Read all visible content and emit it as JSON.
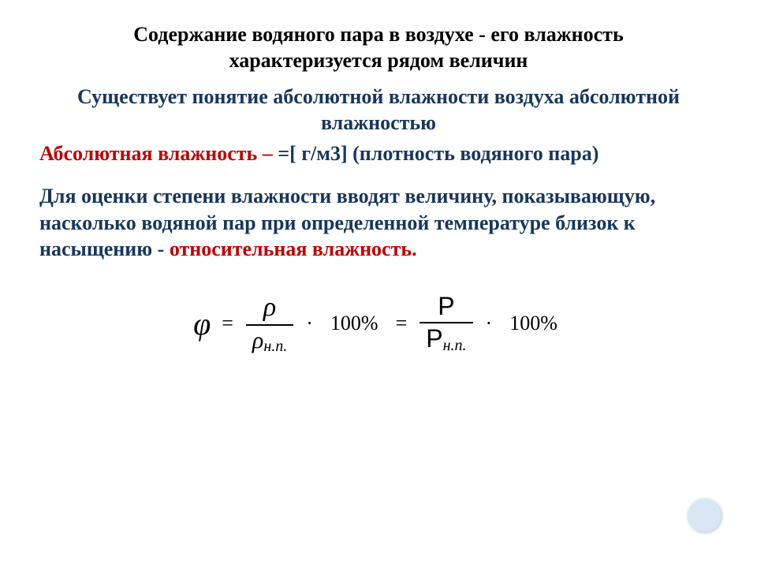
{
  "colors": {
    "heading_black": "#000000",
    "blue": "#17365d",
    "red": "#c00000",
    "corner_fill": "#d9e7f5",
    "background": "#ffffff"
  },
  "typography": {
    "body_fontsize_pt": 20,
    "formula_fontsize_pt": 24,
    "font_family": "Georgia / Times New Roman (serif)",
    "weight": "bold"
  },
  "title": "Содержание водяного пара в воздухе - его влажность характеризуется рядом величин",
  "subhead": "Существует понятие абсолютной влажности воздуха абсолютной влажностью",
  "line_abs": {
    "part_red": "Абсолютная влажность – ",
    "part_blue": "=[ г/м3] (плотность водяного пара)"
  },
  "para2": {
    "blue_prefix": "Для оценки степени влажности вводят величину, показывающую, насколько водяной пар при определенной  температуре близок к насыщению - ",
    "red_tail": "относительная влажность."
  },
  "formula": {
    "phi": "φ",
    "eq": "=",
    "rho": "ρ",
    "rho_np": "ρ",
    "sub_np": "н.п.",
    "mult": "·",
    "hundred": "100%",
    "eq2": "=",
    "P": "P",
    "P_np": "P",
    "sub_np2": "н.п.",
    "mult2": "·",
    "hundred2": "100%"
  }
}
